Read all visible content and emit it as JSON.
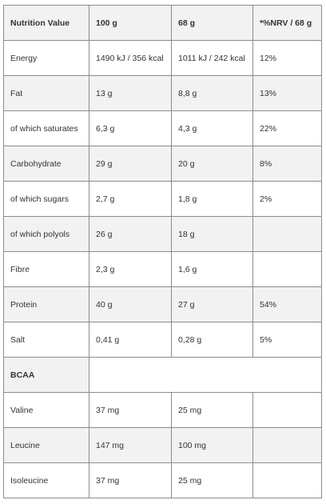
{
  "table": {
    "header": [
      "Nutrition Value",
      "100 g",
      "68 g",
      "*%NRV / 68 g"
    ],
    "rows": [
      [
        "Energy",
        "1490 kJ / 356 kcal",
        "1011 kJ / 242 kcal",
        "12%"
      ],
      [
        "Fat",
        "13 g",
        "8,8 g",
        "13%"
      ],
      [
        "of which saturates",
        "6,3 g",
        "4,3 g",
        "22%"
      ],
      [
        "Carbohydrate",
        "29 g",
        "20 g",
        "8%"
      ],
      [
        "of which sugars",
        "2,7 g",
        "1,8 g",
        "2%"
      ],
      [
        "of which polyols",
        "26 g",
        "18 g"
      ],
      [
        "Fibre",
        "2,3 g",
        "1,6 g"
      ],
      [
        "Protein",
        "40 g",
        "27 g",
        "54%"
      ],
      [
        "Salt",
        "0,41 g",
        "0,28 g",
        "5%"
      ],
      [
        "BCAA"
      ],
      [
        "Valine",
        "37 mg",
        "25 mg"
      ],
      [
        "Leucine",
        "147 mg",
        "100 mg"
      ],
      [
        "Isoleucine",
        "37 mg",
        "25 mg"
      ]
    ]
  }
}
